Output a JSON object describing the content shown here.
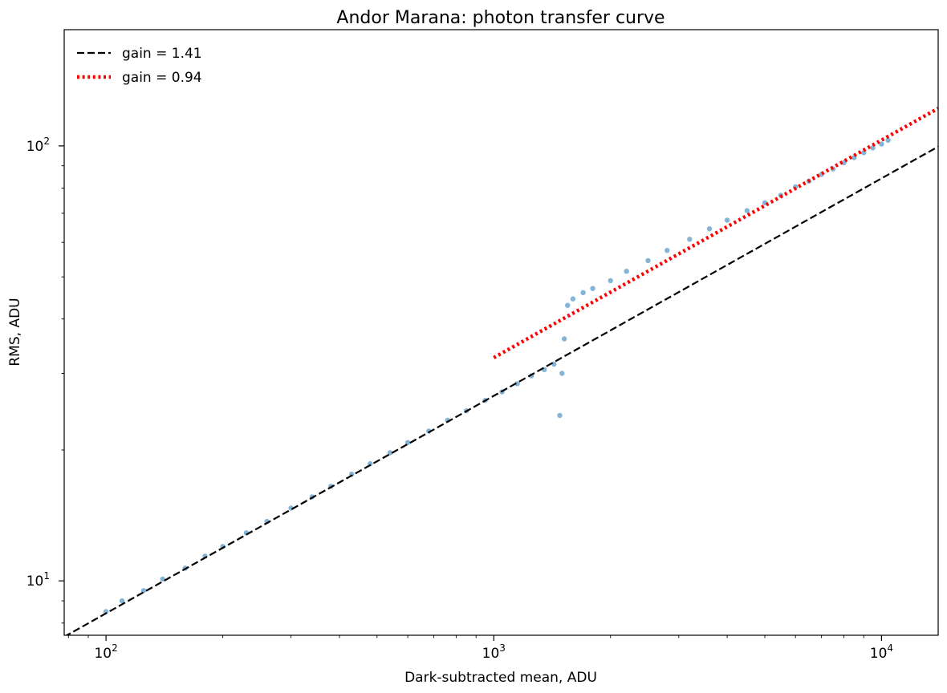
{
  "chart_data": {
    "type": "scatter",
    "title": "Andor Marana: photon transfer curve",
    "xlabel": "Dark-subtracted mean, ADU",
    "ylabel": "RMS, ADU",
    "xscale": "log",
    "yscale": "log",
    "xlim": [
      78,
      14000
    ],
    "ylim": [
      7.5,
      185
    ],
    "grid": false,
    "legend_position": "top-left",
    "x_ticks": [
      {
        "value": 100,
        "base": "10",
        "exp": "2"
      },
      {
        "value": 1000,
        "base": "10",
        "exp": "3"
      },
      {
        "value": 10000,
        "base": "10",
        "exp": "4"
      }
    ],
    "y_ticks": [
      {
        "value": 10,
        "base": "10",
        "exp": "1"
      },
      {
        "value": 100,
        "base": "10",
        "exp": "2"
      }
    ],
    "series": [
      {
        "kind": "scatter",
        "color": "#1f77b4",
        "points": [
          [
            100,
            8.5
          ],
          [
            110,
            9.0
          ],
          [
            125,
            9.5
          ],
          [
            140,
            10.1
          ],
          [
            160,
            10.7
          ],
          [
            180,
            11.4
          ],
          [
            200,
            12.0
          ],
          [
            230,
            12.9
          ],
          [
            260,
            13.7
          ],
          [
            300,
            14.7
          ],
          [
            340,
            15.6
          ],
          [
            380,
            16.5
          ],
          [
            430,
            17.6
          ],
          [
            480,
            18.6
          ],
          [
            540,
            19.7
          ],
          [
            600,
            20.8
          ],
          [
            680,
            22.1
          ],
          [
            760,
            23.4
          ],
          [
            850,
            24.6
          ],
          [
            950,
            26.0
          ],
          [
            1050,
            27.2
          ],
          [
            1150,
            28.4
          ],
          [
            1250,
            29.6
          ],
          [
            1350,
            30.6
          ],
          [
            1430,
            31.5
          ],
          [
            1480,
            24.0
          ],
          [
            1500,
            30.0
          ],
          [
            1520,
            36.0
          ],
          [
            1550,
            43.0
          ],
          [
            1600,
            44.5
          ],
          [
            1700,
            46.0
          ],
          [
            1800,
            47.0
          ],
          [
            2000,
            49.0
          ],
          [
            2200,
            51.5
          ],
          [
            2500,
            54.5
          ],
          [
            2800,
            57.5
          ],
          [
            3200,
            61.0
          ],
          [
            3600,
            64.5
          ],
          [
            4000,
            67.5
          ],
          [
            4500,
            71.0
          ],
          [
            5000,
            74.0
          ],
          [
            5500,
            77.0
          ],
          [
            6000,
            80.5
          ],
          [
            6500,
            83.0
          ],
          [
            7000,
            86.0
          ],
          [
            7500,
            88.5
          ],
          [
            8000,
            91.5
          ],
          [
            8500,
            94.0
          ],
          [
            9000,
            96.5
          ],
          [
            9500,
            99.0
          ],
          [
            10000,
            101.0
          ],
          [
            10400,
            103.0
          ]
        ]
      },
      {
        "kind": "line",
        "name": "gain = 1.41",
        "style": "dashed",
        "color": "#000000",
        "x": [
          78,
          14000
        ],
        "y": [
          7.44,
          99.6
        ]
      },
      {
        "kind": "line",
        "name": "gain = 0.94",
        "style": "dotted",
        "color": "#ff0000",
        "x": [
          1000,
          14000
        ],
        "y": [
          32.6,
          122.0
        ]
      }
    ]
  }
}
